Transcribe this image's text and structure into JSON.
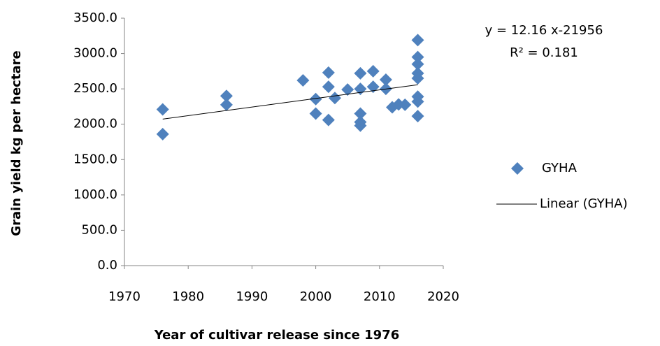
{
  "chart_data": {
    "type": "scatter",
    "x_label": "Year of cultivar release since 1976",
    "y_label": "Grain yield kg per hectare",
    "xlim": [
      1970,
      2020
    ],
    "xticks": [
      1970,
      1980,
      1990,
      2000,
      2010,
      2020
    ],
    "ylim": [
      0,
      3500
    ],
    "yticks": [
      {
        "value": 0,
        "label": "0.0"
      },
      {
        "value": 500,
        "label": "500.0"
      },
      {
        "value": 1000,
        "label": "1000.0"
      },
      {
        "value": 1500,
        "label": "1500.0"
      },
      {
        "value": 2000,
        "label": "2000.0"
      },
      {
        "value": 2500,
        "label": "2500.0"
      },
      {
        "value": 3000,
        "label": "3000.0"
      },
      {
        "value": 3500,
        "label": "3500.0"
      }
    ],
    "series": [
      {
        "name": "GYHA",
        "color": "#4f81bd",
        "x": [
          1976,
          1976,
          1986,
          1986,
          1998,
          2000,
          2000,
          2002,
          2002,
          2002,
          2003,
          2005,
          2007,
          2007,
          2007,
          2007,
          2007,
          2009,
          2009,
          2011,
          2011,
          2012,
          2013,
          2014,
          2016,
          2016,
          2016,
          2016,
          2016,
          2016,
          2016,
          2016
        ],
        "values": [
          2210,
          1860,
          2400,
          2275,
          2620,
          2355,
          2150,
          2730,
          2530,
          2060,
          2370,
          2490,
          2720,
          2500,
          2150,
          2030,
          1980,
          2750,
          2530,
          2630,
          2500,
          2240,
          2280,
          2275,
          3190,
          2950,
          2850,
          2720,
          2650,
          2390,
          2320,
          2115
        ]
      }
    ],
    "trendline": {
      "name": "Linear (GYHA)",
      "color": "#000000",
      "x": [
        1976,
        2016
      ],
      "values": [
        2072.2,
        2558.6
      ]
    },
    "annotations": [
      "y = 12.16 x-21956",
      "R² = 0.181"
    ],
    "legend": "right"
  }
}
